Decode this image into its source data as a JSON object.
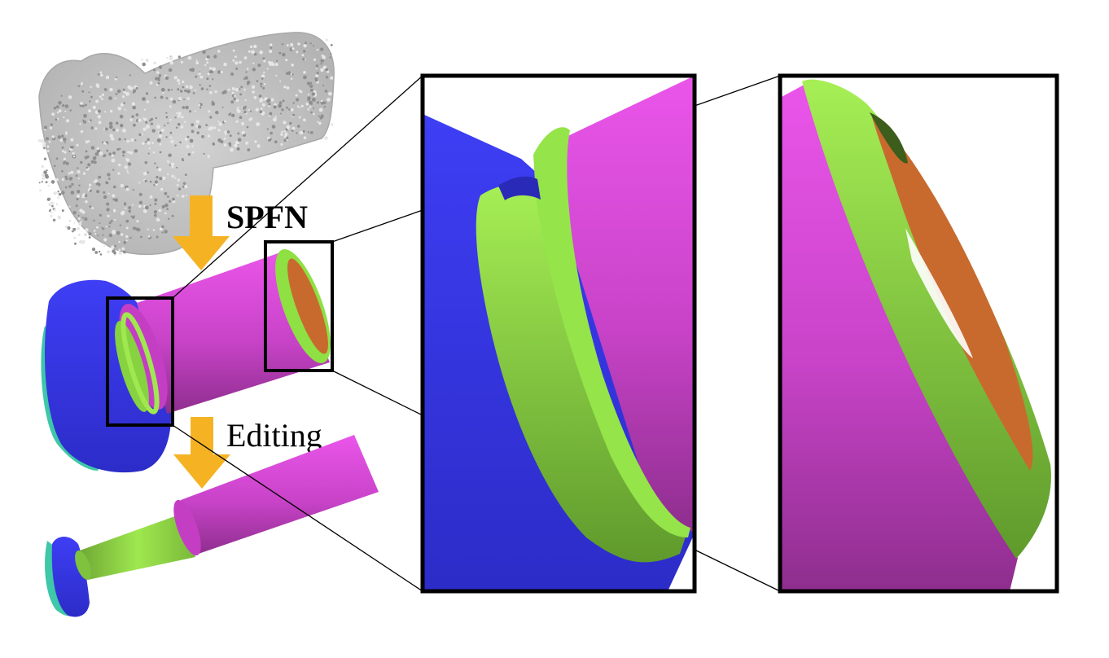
{
  "figure": {
    "step_labels": {
      "primitive_fitting": "SPFN",
      "editing": "Editing"
    },
    "colors": {
      "plane_blue": "#3a3ae6",
      "cylinder_magenta": "#d447d4",
      "ring_green": "#8ee043",
      "inner_orange": "#c86a2e",
      "arrow_orange": "#f5b324",
      "point_cloud_gray": "#c8c8c8",
      "teal_rim": "#3ec7a8"
    }
  }
}
